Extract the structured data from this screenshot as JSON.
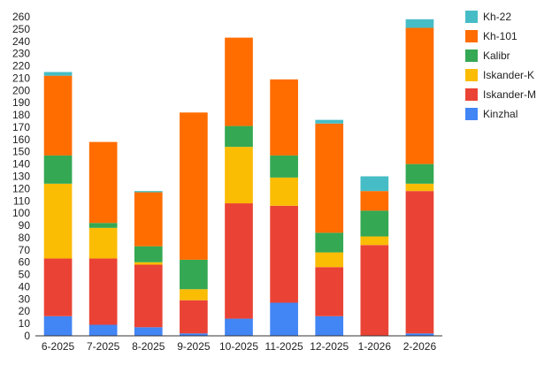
{
  "chart_data": {
    "type": "bar",
    "stacked": true,
    "title": "",
    "xlabel": "",
    "ylabel": "",
    "ylim": [
      0,
      260
    ],
    "ytick_step": 10,
    "grid": false,
    "legend_position": "right",
    "categories": [
      "6-2025",
      "7-2025",
      "8-2025",
      "9-2025",
      "10-2025",
      "11-2025",
      "12-2025",
      "1-2026",
      "2-2026"
    ],
    "series": [
      {
        "name": "Kinzhal",
        "color": "#4285F4",
        "values": [
          16,
          9,
          7,
          2,
          14,
          27,
          16,
          0,
          2
        ]
      },
      {
        "name": "Iskander-M",
        "color": "#EA4335",
        "values": [
          47,
          54,
          51,
          27,
          94,
          79,
          40,
          74,
          116
        ]
      },
      {
        "name": "Iskander-K",
        "color": "#FBBC04",
        "values": [
          61,
          25,
          2,
          9,
          46,
          23,
          12,
          7,
          6
        ]
      },
      {
        "name": "Kalibr",
        "color": "#34A853",
        "values": [
          23,
          4,
          13,
          24,
          17,
          18,
          16,
          21,
          16
        ]
      },
      {
        "name": "Kh-101",
        "color": "#FF6D01",
        "values": [
          65,
          66,
          44,
          120,
          72,
          62,
          89,
          16,
          111
        ]
      },
      {
        "name": "Kh-22",
        "color": "#46BDC6",
        "values": [
          3,
          0,
          1,
          0,
          0,
          0,
          3,
          12,
          7
        ]
      }
    ]
  }
}
